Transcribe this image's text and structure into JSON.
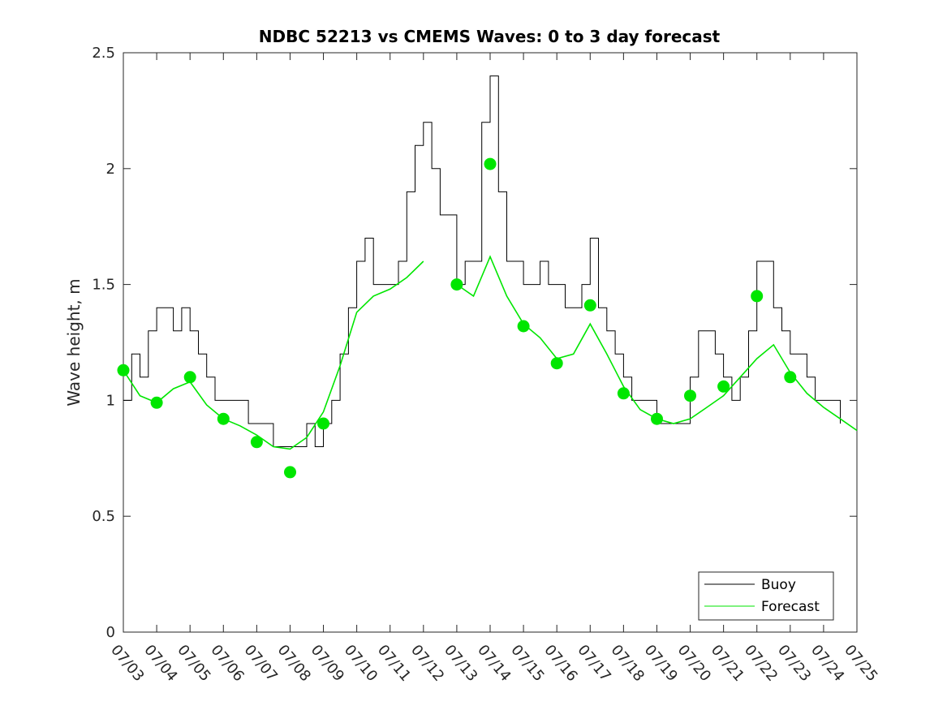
{
  "chart_data": {
    "type": "line",
    "title": "NDBC 52213 vs CMEMS Waves: 0 to 3 day forecast",
    "xlabel": "",
    "ylabel": "Wave height, m",
    "x_tick_labels": [
      "07/03",
      "07/04",
      "07/05",
      "07/06",
      "07/07",
      "07/08",
      "07/09",
      "07/10",
      "07/11",
      "07/12",
      "07/13",
      "07/14",
      "07/15",
      "07/16",
      "07/17",
      "07/18",
      "07/19",
      "07/20",
      "07/21",
      "07/22",
      "07/23",
      "07/24",
      "07/25"
    ],
    "y_tick_labels": [
      "0",
      "0.5",
      "1",
      "1.5",
      "2",
      "2.5"
    ],
    "ylim": [
      0,
      2.5
    ],
    "grid": false,
    "legend_position": "bottom-right",
    "colors": {
      "buoy": "#000000",
      "forecast": "#00e600"
    },
    "series": [
      {
        "name": "Buoy",
        "x": [
          "07/03",
          "07/03 06:00",
          "07/03 12:00",
          "07/03 18:00",
          "07/04",
          "07/04 06:00",
          "07/04 12:00",
          "07/04 18:00",
          "07/05",
          "07/05 06:00",
          "07/05 12:00",
          "07/05 18:00",
          "07/06",
          "07/06 06:00",
          "07/06 12:00",
          "07/06 18:00",
          "07/07",
          "07/07 06:00",
          "07/07 12:00",
          "07/07 18:00",
          "07/08",
          "07/08 06:00",
          "07/08 12:00",
          "07/08 18:00",
          "07/09",
          "07/09 06:00",
          "07/09 12:00",
          "07/09 18:00",
          "07/10",
          "07/10 06:00",
          "07/10 12:00",
          "07/10 18:00",
          "07/11",
          "07/11 06:00",
          "07/11 12:00",
          "07/11 18:00",
          "07/12",
          "07/12 06:00",
          "07/12 12:00",
          "07/12 18:00",
          "07/13",
          "07/13 06:00",
          "07/13 12:00",
          "07/13 18:00",
          "07/14",
          "07/14 06:00",
          "07/14 12:00",
          "07/14 18:00",
          "07/15",
          "07/15 06:00",
          "07/15 12:00",
          "07/15 18:00",
          "07/16",
          "07/16 06:00",
          "07/16 12:00",
          "07/16 18:00",
          "07/17",
          "07/17 06:00",
          "07/17 12:00",
          "07/17 18:00",
          "07/18",
          "07/18 06:00",
          "07/18 12:00",
          "07/18 18:00",
          "07/19",
          "07/19 06:00",
          "07/19 12:00",
          "07/19 18:00",
          "07/20",
          "07/20 06:00",
          "07/20 12:00",
          "07/20 18:00",
          "07/21",
          "07/21 06:00",
          "07/21 12:00",
          "07/21 18:00",
          "07/22",
          "07/22 06:00",
          "07/22 12:00",
          "07/22 18:00",
          "07/23",
          "07/23 06:00",
          "07/23 12:00",
          "07/23 18:00",
          "07/24",
          "07/24 06:00",
          "07/24 12:00",
          "07/24 18:00"
        ],
        "values": [
          1.0,
          1.2,
          1.1,
          1.3,
          1.4,
          1.4,
          1.3,
          1.4,
          1.3,
          1.2,
          1.1,
          1.0,
          1.0,
          1.0,
          1.0,
          0.9,
          0.9,
          0.9,
          0.8,
          0.8,
          0.8,
          0.8,
          0.9,
          0.8,
          0.9,
          1.0,
          1.2,
          1.4,
          1.6,
          1.7,
          1.5,
          1.5,
          1.5,
          1.6,
          1.9,
          2.1,
          2.2,
          2.0,
          1.8,
          1.8,
          1.5,
          1.6,
          1.6,
          2.2,
          2.4,
          1.9,
          1.6,
          1.6,
          1.5,
          1.5,
          1.6,
          1.5,
          1.5,
          1.4,
          1.4,
          1.5,
          1.7,
          1.4,
          1.3,
          1.2,
          1.1,
          1.0,
          1.0,
          1.0,
          0.9,
          0.9,
          0.9,
          0.9,
          1.1,
          1.3,
          1.3,
          1.2,
          1.1,
          1.0,
          1.1,
          1.3,
          1.6,
          1.6,
          1.4,
          1.3,
          1.2,
          1.2,
          1.1,
          1.0,
          1.0,
          1.0,
          0.9,
          null
        ]
      },
      {
        "name": "Forecast",
        "x": [
          "07/03",
          "07/03 12:00",
          "07/04",
          "07/04 12:00",
          "07/05",
          "07/05 12:00",
          "07/06",
          "07/06 12:00",
          "07/07",
          "07/07 12:00",
          "07/08",
          "07/08 12:00",
          "07/09",
          "07/09 12:00",
          "07/10",
          "07/10 12:00",
          "07/11",
          "07/11 12:00",
          "07/12",
          "07/12 12:00",
          "07/13",
          "07/13 12:00",
          "07/14",
          "07/14 12:00",
          "07/15",
          "07/15 12:00",
          "07/16",
          "07/16 12:00",
          "07/17",
          "07/17 12:00",
          "07/18",
          "07/18 12:00",
          "07/19",
          "07/19 12:00",
          "07/20",
          "07/20 12:00",
          "07/21",
          "07/21 12:00",
          "07/22",
          "07/22 12:00",
          "07/23",
          "07/23 12:00",
          "07/24",
          "07/24 12:00",
          "07/25"
        ],
        "values": [
          1.13,
          1.02,
          0.99,
          1.05,
          1.08,
          0.98,
          0.92,
          0.89,
          0.85,
          0.8,
          0.79,
          0.84,
          0.95,
          1.15,
          1.38,
          1.45,
          1.48,
          1.53,
          1.6,
          null,
          1.5,
          1.45,
          1.62,
          1.45,
          1.33,
          1.27,
          1.18,
          1.2,
          1.33,
          1.2,
          1.06,
          0.96,
          0.92,
          0.9,
          0.92,
          0.97,
          1.02,
          1.1,
          1.18,
          1.24,
          1.12,
          1.03,
          0.97,
          0.92,
          0.87
        ]
      }
    ],
    "forecast_markers": [
      {
        "x": "07/03",
        "y": 1.13
      },
      {
        "x": "07/04",
        "y": 0.99
      },
      {
        "x": "07/05",
        "y": 1.1
      },
      {
        "x": "07/06",
        "y": 0.92
      },
      {
        "x": "07/07",
        "y": 0.82
      },
      {
        "x": "07/08",
        "y": 0.69
      },
      {
        "x": "07/09",
        "y": 0.9
      },
      {
        "x": "07/13",
        "y": 1.5
      },
      {
        "x": "07/14",
        "y": 2.02
      },
      {
        "x": "07/15",
        "y": 1.32
      },
      {
        "x": "07/16",
        "y": 1.16
      },
      {
        "x": "07/17",
        "y": 1.41
      },
      {
        "x": "07/18",
        "y": 1.03
      },
      {
        "x": "07/19",
        "y": 0.92
      },
      {
        "x": "07/20",
        "y": 1.02
      },
      {
        "x": "07/21",
        "y": 1.06
      },
      {
        "x": "07/22",
        "y": 1.45
      },
      {
        "x": "07/23",
        "y": 1.1
      }
    ]
  }
}
